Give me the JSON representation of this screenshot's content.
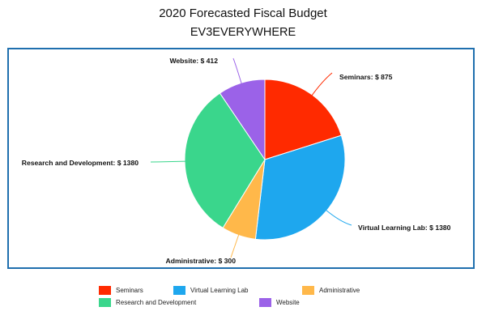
{
  "page": {
    "title": "2020 Forecasted Fiscal Budget",
    "subtitle": "EV3EVERYWHERE"
  },
  "chart_data": {
    "type": "pie",
    "title": "2020 Forecasted Fiscal Budget",
    "subtitle": "EV3EVERYWHERE",
    "start_angle_deg": 0,
    "direction": "clockwise",
    "legend_placement": "bottom",
    "slices": [
      {
        "name": "Seminars",
        "value": 875,
        "label": "Seminars: $ 875",
        "color": "#ff2a00"
      },
      {
        "name": "Virtual Learning Lab",
        "value": 1380,
        "label": "Virtual Learning Lab: $ 1380",
        "color": "#1ea7ee"
      },
      {
        "name": "Administrative",
        "value": 300,
        "label": "Administrative: $ 300",
        "color": "#ffb84a"
      },
      {
        "name": "Research and Development",
        "value": 1380,
        "label": "Research and Development: $ 1380",
        "color": "#3ad68c"
      },
      {
        "name": "Website",
        "value": 412,
        "label": "Website: $ 412",
        "color": "#9b62e8"
      }
    ]
  },
  "legend": {
    "items": [
      "Seminars",
      "Virtual Learning Lab",
      "Administrative",
      "Research and Development",
      "Website"
    ]
  }
}
